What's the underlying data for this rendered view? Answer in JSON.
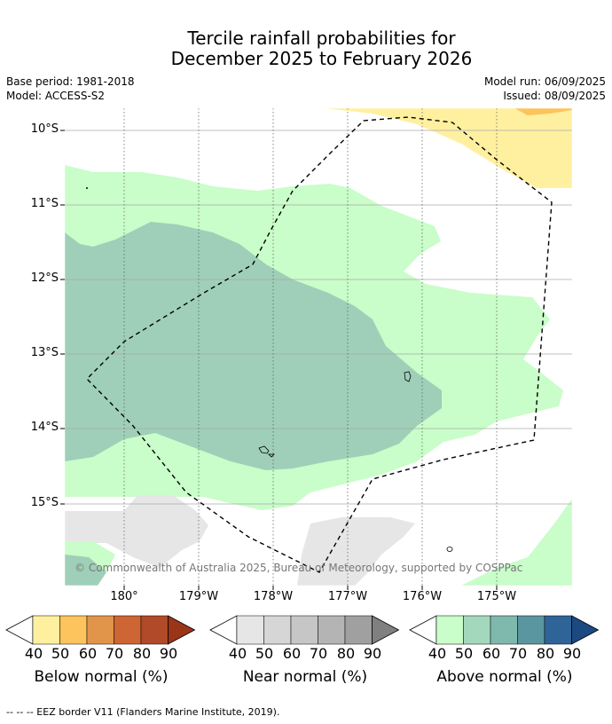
{
  "title_line1": "Tercile rainfall probabilities for",
  "title_line2": "December 2025 to February 2026",
  "base_period": "Base period: 1981-2018",
  "model": "Model: ACCESS-S2",
  "model_run": "Model run: 06/09/2025",
  "issued": "Issued: 08/09/2025",
  "lat_labels": [
    "10°S",
    "11°S",
    "12°S",
    "13°S",
    "14°S",
    "15°S"
  ],
  "lon_labels": [
    "180°",
    "179°W",
    "178°W",
    "177°W",
    "176°W",
    "175°W"
  ],
  "copyright": "© Commonwealth of Australia 2025, Bureau of Meteorology, supported by COSPPac",
  "colorbars": [
    {
      "label": "Below normal (%)",
      "ticks": [
        "40",
        "50",
        "60",
        "70",
        "80",
        "90"
      ],
      "colors": [
        "#fff0a0",
        "#fdc35c",
        "#e1954a",
        "#cd6634",
        "#b04a28",
        "#9a3518"
      ]
    },
    {
      "label": "Near normal (%)",
      "ticks": [
        "40",
        "50",
        "60",
        "70",
        "80",
        "90"
      ],
      "colors": [
        "#e6e6e6",
        "#d6d6d6",
        "#c6c6c6",
        "#b4b4b4",
        "#a0a0a0",
        "#808080"
      ]
    },
    {
      "label": "Above normal (%)",
      "ticks": [
        "40",
        "50",
        "60",
        "70",
        "80",
        "90"
      ],
      "colors": [
        "#c9fdc9",
        "#a4d8bc",
        "#7fb8ad",
        "#5a96a0",
        "#2f6499",
        "#1c4a80"
      ]
    }
  ],
  "footer": "--  --  -- EEZ border V11 (Flanders Marine Institute, 2019)."
}
